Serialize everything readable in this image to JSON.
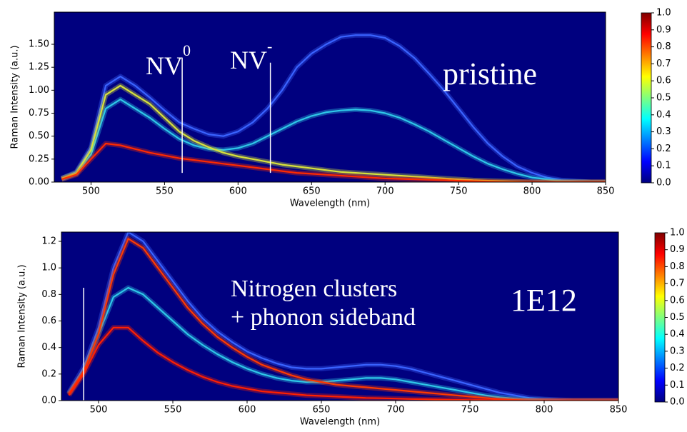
{
  "chart_data": [
    {
      "type": "line",
      "xlabel": "Wavelength (nm)",
      "ylabel": "Raman Intensity (a.u.)",
      "background": "#00007f",
      "xlim": [
        475,
        850
      ],
      "ylim": [
        0,
        1.85
      ],
      "xticks": [
        500,
        550,
        600,
        650,
        700,
        750,
        800,
        850
      ],
      "yticks": [
        {
          "value": 0,
          "label": "0.00"
        },
        {
          "value": 0.25,
          "label": "0.25"
        },
        {
          "value": 0.5,
          "label": "0.50"
        },
        {
          "value": 0.75,
          "label": "0.75"
        },
        {
          "value": 1,
          "label": "1.00"
        },
        {
          "value": 1.25,
          "label": "1.25"
        },
        {
          "value": 1.5,
          "label": "1.50"
        }
      ],
      "x": [
        480,
        490,
        500,
        510,
        520,
        530,
        540,
        550,
        560,
        570,
        580,
        590,
        600,
        610,
        620,
        630,
        640,
        650,
        660,
        670,
        680,
        690,
        700,
        710,
        720,
        730,
        740,
        750,
        760,
        770,
        780,
        790,
        800,
        810,
        820,
        830,
        840,
        850
      ],
      "series": [
        {
          "color": "#3a63ff",
          "values": [
            0.04,
            0.11,
            0.38,
            1.05,
            1.15,
            1.05,
            0.92,
            0.78,
            0.65,
            0.58,
            0.52,
            0.5,
            0.55,
            0.65,
            0.8,
            1,
            1.25,
            1.4,
            1.5,
            1.58,
            1.6,
            1.6,
            1.57,
            1.48,
            1.35,
            1.18,
            1,
            0.8,
            0.6,
            0.42,
            0.28,
            0.17,
            0.1,
            0.05,
            0.02,
            0.01,
            0,
            0
          ]
        },
        {
          "color": "#2ec8e8",
          "values": [
            0.03,
            0.09,
            0.3,
            0.8,
            0.9,
            0.8,
            0.7,
            0.58,
            0.47,
            0.4,
            0.36,
            0.35,
            0.37,
            0.42,
            0.5,
            0.58,
            0.66,
            0.72,
            0.76,
            0.78,
            0.79,
            0.78,
            0.75,
            0.7,
            0.63,
            0.55,
            0.46,
            0.37,
            0.28,
            0.2,
            0.14,
            0.09,
            0.05,
            0.03,
            0.01,
            0.005,
            0,
            0
          ]
        },
        {
          "color": "#d8e23a",
          "values": [
            0.04,
            0.1,
            0.35,
            0.95,
            1.05,
            0.95,
            0.85,
            0.7,
            0.55,
            0.45,
            0.38,
            0.32,
            0.28,
            0.25,
            0.22,
            0.19,
            0.17,
            0.15,
            0.13,
            0.11,
            0.1,
            0.09,
            0.08,
            0.07,
            0.06,
            0.05,
            0.04,
            0.03,
            0.02,
            0.015,
            0.01,
            0.005,
            0,
            0,
            0,
            0,
            0,
            0
          ]
        },
        {
          "color": "#ff2a00",
          "values": [
            0.03,
            0.08,
            0.25,
            0.42,
            0.4,
            0.36,
            0.32,
            0.29,
            0.26,
            0.24,
            0.22,
            0.2,
            0.18,
            0.16,
            0.14,
            0.12,
            0.1,
            0.09,
            0.08,
            0.07,
            0.06,
            0.05,
            0.04,
            0.035,
            0.03,
            0.025,
            0.02,
            0.015,
            0.01,
            0.005,
            0,
            0,
            0,
            0,
            0,
            0,
            0,
            0
          ]
        }
      ],
      "vlines": [
        {
          "x": 562,
          "ymin": 0.1,
          "ymax": 1.35
        },
        {
          "x": 622,
          "ymin": 0.1,
          "ymax": 1.3
        }
      ],
      "annotations": [
        {
          "text": "NV",
          "sup": "0"
        },
        {
          "text": "NV",
          "sup": "-"
        },
        {
          "text": "pristine"
        }
      ],
      "colorbar": {
        "lim": [
          0,
          1
        ],
        "colors": [
          "#00007f",
          "#0000ff",
          "#007fff",
          "#00ffff",
          "#7fff7f",
          "#ffff00",
          "#ff7f00",
          "#ff0000",
          "#7f0000"
        ],
        "ticks": [
          {
            "value": 0,
            "label": "0.0"
          },
          {
            "value": 0.1,
            "label": "0.1"
          },
          {
            "value": 0.2,
            "label": "0.2"
          },
          {
            "value": 0.3,
            "label": "0.3"
          },
          {
            "value": 0.4,
            "label": "0.4"
          },
          {
            "value": 0.5,
            "label": "0.5"
          },
          {
            "value": 0.6,
            "label": "0.6"
          },
          {
            "value": 0.7,
            "label": "0.7"
          },
          {
            "value": 0.8,
            "label": "0.8"
          },
          {
            "value": 0.9,
            "label": "0.9"
          },
          {
            "value": 1,
            "label": "1.0"
          }
        ]
      }
    },
    {
      "type": "line",
      "xlabel": "Wavelength (nm)",
      "ylabel": "Raman Intensity (a.u.)",
      "background": "#00007f",
      "xlim": [
        475,
        850
      ],
      "ylim": [
        0,
        1.27
      ],
      "xticks": [
        500,
        550,
        600,
        650,
        700,
        750,
        800,
        850
      ],
      "yticks": [
        {
          "value": 0,
          "label": "0.0"
        },
        {
          "value": 0.2,
          "label": "0.2"
        },
        {
          "value": 0.4,
          "label": "0.4"
        },
        {
          "value": 0.6,
          "label": "0.6"
        },
        {
          "value": 0.8,
          "label": "0.8"
        },
        {
          "value": 1,
          "label": "1.0"
        },
        {
          "value": 1.2,
          "label": "1.2"
        }
      ],
      "x": [
        480,
        490,
        500,
        510,
        520,
        530,
        540,
        550,
        560,
        570,
        580,
        590,
        600,
        610,
        620,
        630,
        640,
        650,
        660,
        670,
        680,
        690,
        700,
        710,
        720,
        730,
        740,
        750,
        760,
        770,
        780,
        790,
        800,
        810,
        820,
        830,
        840,
        850
      ],
      "series": [
        {
          "color": "#3a63ff",
          "values": [
            0.06,
            0.25,
            0.55,
            1,
            1.27,
            1.2,
            1.05,
            0.9,
            0.75,
            0.62,
            0.52,
            0.44,
            0.37,
            0.32,
            0.28,
            0.25,
            0.24,
            0.24,
            0.25,
            0.26,
            0.27,
            0.27,
            0.26,
            0.24,
            0.21,
            0.18,
            0.15,
            0.12,
            0.09,
            0.06,
            0.04,
            0.02,
            0.01,
            0.005,
            0,
            0,
            0,
            0
          ]
        },
        {
          "color": "#2ec8e8",
          "values": [
            0.05,
            0.22,
            0.5,
            0.78,
            0.85,
            0.8,
            0.7,
            0.6,
            0.5,
            0.42,
            0.35,
            0.29,
            0.24,
            0.2,
            0.17,
            0.15,
            0.14,
            0.14,
            0.15,
            0.16,
            0.17,
            0.17,
            0.16,
            0.14,
            0.12,
            0.1,
            0.08,
            0.06,
            0.04,
            0.025,
            0.015,
            0.008,
            0.004,
            0,
            0,
            0,
            0,
            0
          ]
        },
        {
          "color": "#ff3a00",
          "values": [
            0.05,
            0.22,
            0.5,
            0.95,
            1.22,
            1.15,
            1,
            0.85,
            0.7,
            0.58,
            0.48,
            0.4,
            0.33,
            0.27,
            0.23,
            0.19,
            0.16,
            0.14,
            0.12,
            0.11,
            0.1,
            0.09,
            0.08,
            0.07,
            0.06,
            0.05,
            0.04,
            0.03,
            0.02,
            0.01,
            0.005,
            0,
            0,
            0,
            0,
            0,
            0,
            0
          ]
        },
        {
          "color": "#ff2000",
          "values": [
            0.04,
            0.2,
            0.42,
            0.55,
            0.55,
            0.45,
            0.36,
            0.29,
            0.23,
            0.18,
            0.14,
            0.11,
            0.09,
            0.07,
            0.06,
            0.05,
            0.04,
            0.035,
            0.03,
            0.025,
            0.02,
            0.018,
            0.015,
            0.012,
            0.01,
            0.008,
            0.006,
            0.004,
            0.003,
            0.002,
            0,
            0,
            0,
            0,
            0,
            0,
            0,
            0
          ]
        }
      ],
      "vlines": [
        {
          "x": 490,
          "ymin": 0,
          "ymax": 0.85
        }
      ],
      "annotations": [
        {
          "text": "Nitrogen clusters"
        },
        {
          "text": "+ phonon sideband"
        },
        {
          "text": "1E12"
        }
      ],
      "colorbar": {
        "lim": [
          0,
          1
        ],
        "colors": [
          "#00007f",
          "#0000ff",
          "#007fff",
          "#00ffff",
          "#7fff7f",
          "#ffff00",
          "#ff7f00",
          "#ff0000",
          "#7f0000"
        ],
        "ticks": [
          {
            "value": 0,
            "label": "0.0"
          },
          {
            "value": 0.1,
            "label": "0.1"
          },
          {
            "value": 0.2,
            "label": "0.2"
          },
          {
            "value": 0.3,
            "label": "0.3"
          },
          {
            "value": 0.4,
            "label": "0.4"
          },
          {
            "value": 0.5,
            "label": "0.5"
          },
          {
            "value": 0.6,
            "label": "0.6"
          },
          {
            "value": 0.7,
            "label": "0.7"
          },
          {
            "value": 0.8,
            "label": "0.8"
          },
          {
            "value": 0.9,
            "label": "0.9"
          },
          {
            "value": 1,
            "label": "1.0"
          }
        ]
      }
    }
  ]
}
